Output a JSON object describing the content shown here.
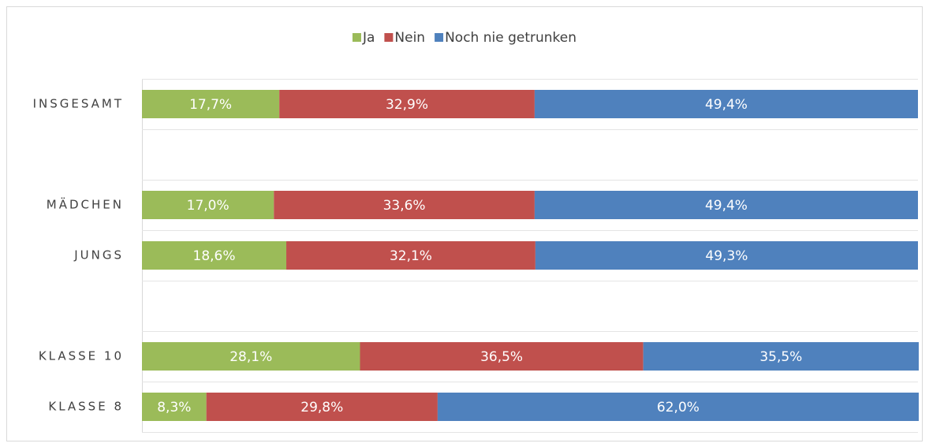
{
  "chart_data": {
    "type": "stacked_bar_horizontal",
    "categories": [
      "INSGESAMT",
      null,
      "MÄDCHEN",
      "JUNGS",
      null,
      "KLASSE 10",
      "KLASSE 8"
    ],
    "series": [
      {
        "name": "Ja",
        "color": "#9bbb59",
        "values": [
          17.7,
          null,
          17.0,
          18.6,
          null,
          28.1,
          8.3
        ],
        "value_labels": [
          "17,7%",
          null,
          "17,0%",
          "18,6%",
          null,
          "28,1%",
          "8,3%"
        ]
      },
      {
        "name": "Nein",
        "color": "#c0504d",
        "values": [
          32.9,
          null,
          33.6,
          32.1,
          null,
          36.5,
          29.8
        ],
        "value_labels": [
          "32,9%",
          null,
          "33,6%",
          "32,1%",
          null,
          "36,5%",
          "29,8%"
        ]
      },
      {
        "name": "Noch nie getrunken",
        "color": "#4f81bd",
        "values": [
          49.4,
          null,
          49.4,
          49.3,
          null,
          35.5,
          62.0
        ],
        "value_labels": [
          "49,4%",
          null,
          "49,4%",
          "49,3%",
          null,
          "35,5%",
          "62,0%"
        ]
      }
    ],
    "xlim": [
      0,
      100
    ],
    "legend": "top"
  }
}
